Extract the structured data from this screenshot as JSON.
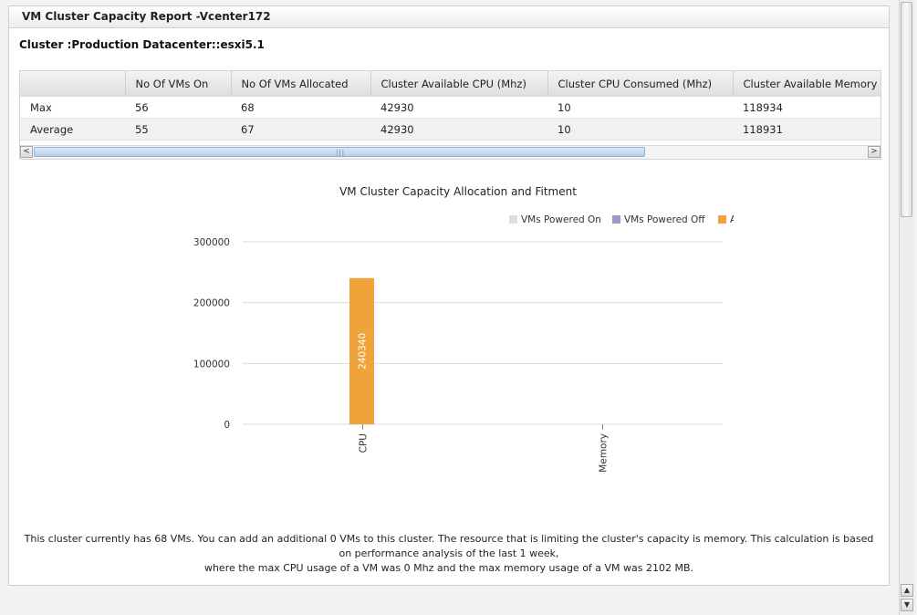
{
  "panel": {
    "title": "VM Cluster Capacity Report -Vcenter172",
    "cluster_label": "Cluster :Production Datacenter::esxi5.1"
  },
  "table": {
    "columns": [
      "",
      "No Of VMs On",
      "No Of VMs Allocated",
      "Cluster Available CPU (Mhz)",
      "Cluster CPU Consumed (Mhz)",
      "Cluster Available Memory"
    ],
    "rows": [
      [
        "Max",
        "56",
        "68",
        "42930",
        "10",
        "118934"
      ],
      [
        "Average",
        "55",
        "67",
        "42930",
        "10",
        "118931"
      ]
    ]
  },
  "scroll": {
    "left_arrow": "<",
    "right_arrow": ">",
    "grip": "|||",
    "up_arrow": "▲",
    "down_arrow": "▼"
  },
  "chart_data": {
    "type": "bar",
    "title": "VM Cluster Capacity Allocation and Fitment",
    "categories": [
      "CPU",
      "Memory"
    ],
    "series": [
      {
        "name": "VMs Powered On",
        "color": "#dcdcea",
        "values": [
          null,
          null
        ]
      },
      {
        "name": "VMs Powered Off",
        "color": "#9999cc",
        "values": [
          null,
          null
        ]
      },
      {
        "name": "A",
        "color": "#f0a23b",
        "values": [
          240340,
          null
        ]
      }
    ],
    "data_labels": [
      "240340",
      ""
    ],
    "yticks": [
      "0",
      "100000",
      "200000",
      "300000"
    ],
    "ylim": [
      0,
      300000
    ],
    "grid": true,
    "legend": "top-right"
  },
  "summary": {
    "line1": "This cluster currently has 68 VMs. You can add an additional 0 VMs to this cluster. The resource that is limiting the cluster's capacity is memory. This calculation is based on performance analysis of the last 1 week,",
    "line2": "where the max CPU usage of a VM was 0 Mhz and the max memory usage of a VM was 2102 MB."
  }
}
